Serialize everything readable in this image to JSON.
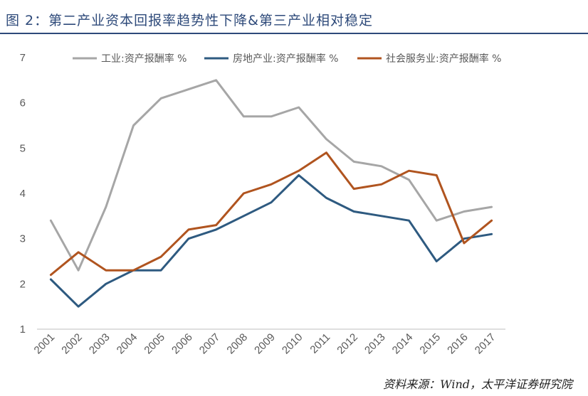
{
  "figure_title": "图 2：第二产业资本回报率趋势性下降&第三产业相对稳定",
  "source_note": "资料来源：Wind，太平洋证券研究院",
  "chart_data": {
    "type": "line",
    "title": "",
    "xlabel": "",
    "ylabel": "",
    "x": [
      "2001",
      "2002",
      "2003",
      "2004",
      "2005",
      "2006",
      "2007",
      "2008",
      "2009",
      "2010",
      "2011",
      "2012",
      "2013",
      "2014",
      "2015",
      "2016",
      "2017"
    ],
    "ylim": [
      1,
      7
    ],
    "yticks": [
      1,
      2,
      3,
      4,
      5,
      6,
      7
    ],
    "grid": false,
    "legend_position": "top",
    "series": [
      {
        "name": "工业:资产报酬率 %",
        "color": "#a6a6a6",
        "values": [
          3.4,
          2.3,
          3.7,
          5.5,
          6.1,
          6.3,
          6.5,
          5.7,
          5.7,
          5.9,
          5.2,
          4.7,
          4.6,
          4.3,
          3.4,
          3.6,
          3.7
        ]
      },
      {
        "name": "房地产业:资产报酬率 %",
        "color": "#2e5a80",
        "values": [
          2.1,
          1.5,
          2.0,
          2.3,
          2.3,
          3.0,
          3.2,
          3.5,
          3.8,
          4.4,
          3.9,
          3.6,
          3.5,
          3.4,
          2.5,
          3.0,
          3.1
        ]
      },
      {
        "name": "社会服务业:资产报酬率 %",
        "color": "#b0541f",
        "values": [
          2.2,
          2.7,
          2.3,
          2.3,
          2.6,
          3.2,
          3.3,
          4.0,
          4.2,
          4.5,
          4.9,
          4.1,
          4.2,
          4.5,
          4.4,
          2.9,
          3.4
        ]
      }
    ]
  }
}
